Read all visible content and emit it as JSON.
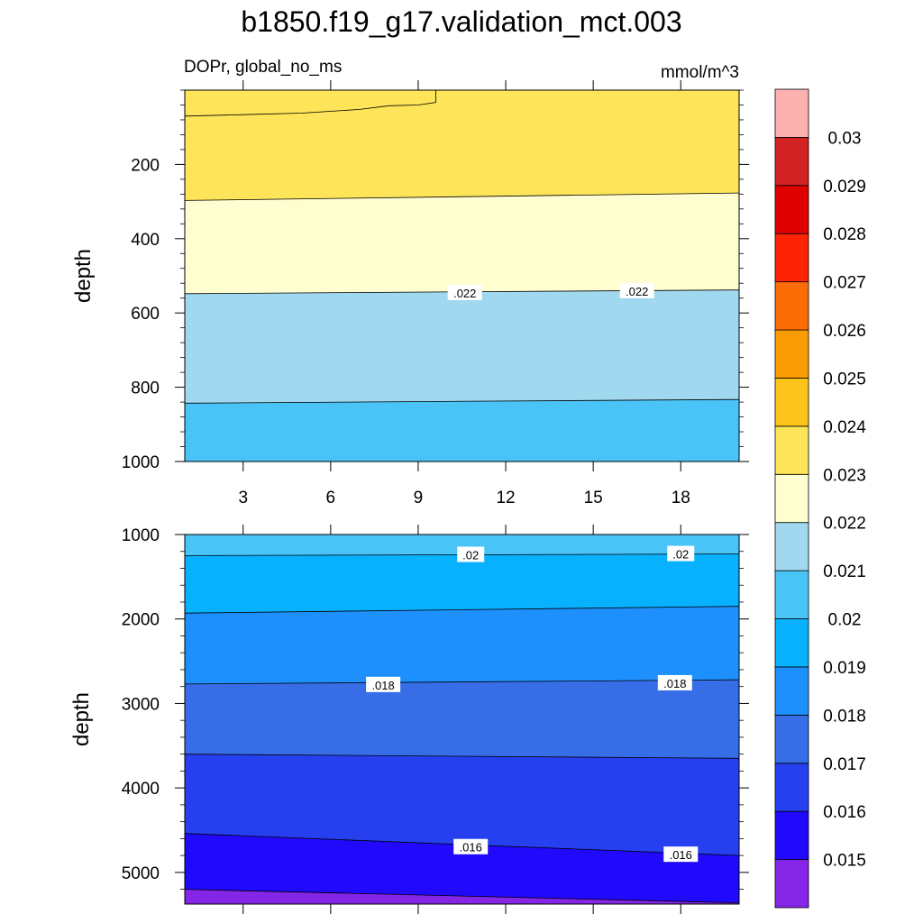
{
  "title": "b1850.f19_g17.validation_mct.003",
  "subtitle_left": "DOPr, global_no_ms",
  "subtitle_right": "mmol/m^3",
  "chart_data": {
    "type": "contour",
    "x": {
      "min": 1,
      "max": 20,
      "ticks": [
        3,
        6,
        9,
        12,
        15,
        18
      ],
      "tick_labels": [
        "3",
        "6",
        "9",
        "12",
        "15",
        "18"
      ]
    },
    "upper_panel": {
      "ylabel": "depth",
      "ylim": [
        0,
        1000
      ],
      "ticks": [
        200,
        400,
        600,
        800,
        1000
      ],
      "tick_labels": [
        "200",
        "400",
        "600",
        "800",
        "1000"
      ],
      "fills": [
        {
          "level_range": [
            0.024,
            0.025
          ],
          "color": "#fcc31a",
          "top": [
            [
              1,
              0
            ],
            [
              20,
              0
            ]
          ],
          "bottom": [
            [
              1,
              70
            ],
            [
              3,
              66
            ],
            [
              5,
              62
            ],
            [
              7,
              52
            ],
            [
              8,
              42
            ],
            [
              9,
              40
            ],
            [
              9.6,
              33
            ],
            [
              9.6,
              0
            ]
          ]
        },
        {
          "level_range": [
            0.023,
            0.024
          ],
          "color": "#fde458",
          "top": [
            [
              1,
              0
            ],
            [
              20,
              0
            ]
          ],
          "bottom": [
            [
              1,
              297
            ],
            [
              20,
              277
            ]
          ]
        },
        {
          "level_range": [
            0.022,
            0.023
          ],
          "color": "#fefed0",
          "top": [
            [
              1,
              297
            ],
            [
              20,
              277
            ]
          ],
          "bottom": [
            [
              1,
              548
            ],
            [
              20,
              538
            ]
          ]
        },
        {
          "level_range": [
            0.021,
            0.022
          ],
          "color": "#a0d8f0",
          "top": [
            [
              1,
              548
            ],
            [
              20,
              538
            ]
          ],
          "bottom": [
            [
              1,
              843
            ],
            [
              20,
              833
            ]
          ]
        },
        {
          "level_range": [
            0.02,
            0.021
          ],
          "color": "#4ac4f7",
          "top": [
            [
              1,
              843
            ],
            [
              20,
              833
            ]
          ],
          "bottom": [
            [
              1,
              1000
            ],
            [
              20,
              1000
            ]
          ]
        }
      ],
      "contour_labels": [
        {
          "text": ".022",
          "x": 10.6,
          "y": 546
        },
        {
          "text": ".022",
          "x": 16.5,
          "y": 541
        }
      ]
    },
    "lower_panel": {
      "ylabel": "depth",
      "ylim": [
        1000,
        5375
      ],
      "ticks": [
        1000,
        2000,
        3000,
        4000,
        5000
      ],
      "tick_labels": [
        "1000",
        "2000",
        "3000",
        "4000",
        "5000"
      ],
      "fills": [
        {
          "level_range": [
            0.02,
            0.021
          ],
          "color": "#4ac4f7",
          "top": [
            [
              1,
              1000
            ],
            [
              20,
              1000
            ]
          ],
          "bottom": [
            [
              1,
              1250
            ],
            [
              20,
              1230
            ]
          ]
        },
        {
          "level_range": [
            0.019,
            0.02
          ],
          "color": "#08b1fe",
          "top": [
            [
              1,
              1250
            ],
            [
              20,
              1230
            ]
          ],
          "bottom": [
            [
              1,
              1930
            ],
            [
              20,
              1850
            ]
          ]
        },
        {
          "level_range": [
            0.018,
            0.019
          ],
          "color": "#1e90fd",
          "top": [
            [
              1,
              1930
            ],
            [
              20,
              1850
            ]
          ],
          "bottom": [
            [
              1,
              2770
            ],
            [
              20,
              2720
            ]
          ]
        },
        {
          "level_range": [
            0.017,
            0.018
          ],
          "color": "#376ee8",
          "top": [
            [
              1,
              2770
            ],
            [
              20,
              2720
            ]
          ],
          "bottom": [
            [
              1,
              3600
            ],
            [
              20,
              3650
            ]
          ]
        },
        {
          "level_range": [
            0.016,
            0.017
          ],
          "color": "#2640f0",
          "top": [
            [
              1,
              3600
            ],
            [
              20,
              3650
            ]
          ],
          "bottom": [
            [
              1,
              4540
            ],
            [
              20,
              4800
            ]
          ]
        },
        {
          "level_range": [
            0.015,
            0.016
          ],
          "color": "#2109fb",
          "top": [
            [
              1,
              4540
            ],
            [
              20,
              4800
            ]
          ],
          "bottom": [
            [
              1,
              5200
            ],
            [
              20,
              5360
            ]
          ]
        },
        {
          "level_range": [
            0.014,
            0.015
          ],
          "color": "#8526e6",
          "top": [
            [
              1,
              5200
            ],
            [
              20,
              5360
            ]
          ],
          "bottom": [
            [
              1,
              5375
            ],
            [
              20,
              5375
            ]
          ]
        }
      ],
      "contour_labels": [
        {
          "text": ".02",
          "x": 10.8,
          "y": 1240
        },
        {
          "text": ".02",
          "x": 18.0,
          "y": 1230
        },
        {
          "text": ".018",
          "x": 7.8,
          "y": 2780
        },
        {
          "text": ".018",
          "x": 17.8,
          "y": 2760
        },
        {
          "text": ".016",
          "x": 10.8,
          "y": 4700
        },
        {
          "text": ".016",
          "x": 18.0,
          "y": 4790
        }
      ]
    },
    "colorbar": {
      "levels": [
        "0.015",
        "0.016",
        "0.017",
        "0.018",
        "0.019",
        "0.02",
        "0.021",
        "0.022",
        "0.023",
        "0.024",
        "0.025",
        "0.026",
        "0.027",
        "0.028",
        "0.029",
        "0.03"
      ],
      "colors": [
        "#8526e6",
        "#2109fb",
        "#2640f0",
        "#376ee8",
        "#1e90fd",
        "#08b1fe",
        "#4ac4f7",
        "#a0d8f0",
        "#fefed0",
        "#fde458",
        "#fcc31a",
        "#fc9c04",
        "#fc6c04",
        "#fc2404",
        "#e00000",
        "#d22222",
        "#feb1b1"
      ]
    }
  }
}
